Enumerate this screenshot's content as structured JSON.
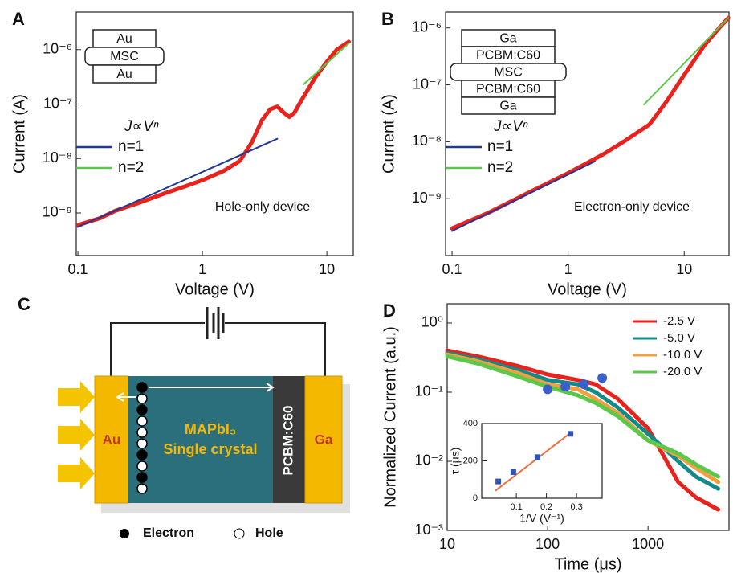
{
  "chart_data": [
    {
      "type": "line",
      "panel_label": "A",
      "xlabel": "Voltage (V)",
      "ylabel": "Current (A)",
      "log_x": true,
      "log_y": true,
      "xlim": [
        0.097,
        16.3
      ],
      "ylim": [
        1.65e-10,
        4.9e-06
      ],
      "xticks": [
        0.1,
        1,
        10
      ],
      "yticks": [
        {
          "value": 1e-09,
          "label": "10⁻⁹"
        },
        {
          "value": 1e-08,
          "label": "10⁻⁸"
        },
        {
          "value": 1e-07,
          "label": "10⁻⁷"
        },
        {
          "value": 1e-06,
          "label": "10⁻⁶"
        }
      ],
      "legend_title": "J∝Vⁿ",
      "legend": "left",
      "annotation": "Hole-only device",
      "stack": [
        "Au",
        "MSC",
        "Au"
      ],
      "series": [
        {
          "color": "#e8221c",
          "x": [
            0.1,
            0.15,
            0.2,
            0.25,
            0.3,
            0.5,
            0.7,
            1,
            1.5,
            2,
            2.5,
            3,
            3.5,
            4,
            4.5,
            5,
            5.5,
            6,
            7,
            8,
            10,
            12,
            15
          ],
          "values": [
            6e-10,
            8e-10,
            1.1e-09,
            1.3e-09,
            1.5e-09,
            2.3e-09,
            3e-09,
            4e-09,
            6e-09,
            9e-09,
            2e-08,
            5e-08,
            8e-08,
            9e-08,
            7e-08,
            5.8e-08,
            7e-08,
            1e-07,
            1.8e-07,
            3e-07,
            6e-07,
            1e-06,
            1.4e-06
          ]
        },
        {
          "name": "n=1",
          "color": "#1f3a93",
          "x": [
            0.1,
            4
          ],
          "values": [
            5.5e-10,
            2.3e-08
          ]
        },
        {
          "name": "n=2",
          "color": "#5cc84a",
          "x": [
            6.5,
            15
          ],
          "values": [
            2.3e-07,
            1.3e-06
          ]
        }
      ]
    },
    {
      "type": "line",
      "panel_label": "B",
      "xlabel": "Voltage (V)",
      "ylabel": "Current (A)",
      "log_x": true,
      "log_y": true,
      "xlim": [
        0.088,
        24.3
      ],
      "ylim": [
        1e-10,
        1.9e-06
      ],
      "xticks": [
        0.1,
        1,
        10
      ],
      "yticks": [
        {
          "value": 1e-09,
          "label": "10⁻⁹"
        },
        {
          "value": 1e-08,
          "label": "10⁻⁸"
        },
        {
          "value": 1e-07,
          "label": "10⁻⁷"
        },
        {
          "value": 1e-06,
          "label": "10⁻⁶"
        }
      ],
      "legend_title": "J∝Vⁿ",
      "legend": "left",
      "annotation": "Electron-only device",
      "stack": [
        "Ga",
        "PCBM:C60",
        "MSC",
        "PCBM:C60",
        "Ga"
      ],
      "series": [
        {
          "color": "#e8221c",
          "x": [
            0.1,
            0.2,
            0.5,
            1,
            2,
            3,
            5,
            7,
            10,
            15,
            20,
            24
          ],
          "values": [
            3e-10,
            5.5e-10,
            1.4e-09,
            2.8e-09,
            6e-09,
            1e-08,
            2e-08,
            5e-08,
            1.5e-07,
            5e-07,
            1e-06,
            1.5e-06
          ]
        },
        {
          "name": "n=1",
          "color": "#1f3a93",
          "x": [
            0.1,
            1.7
          ],
          "values": [
            2.7e-10,
            4.5e-09
          ]
        },
        {
          "name": "n=2",
          "color": "#5cc84a",
          "x": [
            4.5,
            24
          ],
          "values": [
            4.5e-08,
            1.5e-06
          ]
        }
      ]
    },
    {
      "type": "line",
      "panel_label": "D",
      "xlabel": "Time (μs)",
      "ylabel": "Normalized Current (a.u.)",
      "log_x": true,
      "log_y": true,
      "xlim": [
        10,
        6400
      ],
      "ylim": [
        0.001,
        1.9
      ],
      "xticks": [
        10,
        100,
        1000
      ],
      "yticks": [
        {
          "value": 0.001,
          "label": "10⁻³"
        },
        {
          "value": 0.01,
          "label": "10⁻²"
        },
        {
          "value": 0.1,
          "label": "10⁻¹"
        },
        {
          "value": 1,
          "label": "10⁰"
        }
      ],
      "legend": "upper right",
      "series": [
        {
          "name": "-2.5 V",
          "color": "#e8221c",
          "x": [
            10,
            20,
            50,
            100,
            200,
            300,
            500,
            1000,
            2000,
            3000,
            5000
          ],
          "values": [
            0.4,
            0.33,
            0.24,
            0.18,
            0.15,
            0.13,
            0.08,
            0.03,
            0.005,
            0.003,
            0.002
          ]
        },
        {
          "name": "-5.0 V",
          "color": "#138a8a",
          "x": [
            10,
            20,
            50,
            100,
            200,
            300,
            500,
            1000,
            2000,
            3000,
            5000
          ],
          "values": [
            0.37,
            0.3,
            0.21,
            0.15,
            0.13,
            0.1,
            0.06,
            0.025,
            0.01,
            0.006,
            0.004
          ]
        },
        {
          "name": "-10.0 V",
          "color": "#f0a040",
          "x": [
            10,
            20,
            50,
            100,
            200,
            300,
            500,
            1000,
            2000,
            3000,
            5000
          ],
          "values": [
            0.35,
            0.28,
            0.19,
            0.13,
            0.11,
            0.08,
            0.05,
            0.02,
            0.012,
            0.008,
            0.005
          ]
        },
        {
          "name": "-20.0 V",
          "color": "#5cc84a",
          "x": [
            10,
            20,
            50,
            100,
            200,
            300,
            500,
            1000,
            2000,
            3000,
            5000
          ],
          "values": [
            0.33,
            0.26,
            0.17,
            0.12,
            0.09,
            0.07,
            0.045,
            0.02,
            0.013,
            0.009,
            0.006
          ]
        },
        {
          "color": "#3a5fcd",
          "markers": true,
          "x": [
            100,
            150,
            230,
            350
          ],
          "values": [
            0.11,
            0.12,
            0.13,
            0.16
          ]
        }
      ],
      "inset": {
        "type": "scatter",
        "xlabel": "1/V (V⁻¹)",
        "ylabel": "τ (μs)",
        "xlim": [
          -0.015,
          0.385
        ],
        "ylim": [
          0,
          400
        ],
        "xticks": [
          0.1,
          0.2,
          0.3
        ],
        "yticks": [
          0,
          200,
          400
        ],
        "color": "#2d55b5",
        "x": [
          0.04,
          0.09,
          0.17,
          0.28
        ],
        "values": [
          90,
          140,
          220,
          345
        ],
        "fit": {
          "color": "#f06a3a",
          "x": [
            0.03,
            0.28
          ],
          "values": [
            40,
            350
          ]
        }
      }
    }
  ],
  "diagram": {
    "panel_label": "C",
    "left_electrode": "Au",
    "crystal": [
      "MAPbI₃",
      "Single crystal"
    ],
    "layer": "PCBM:C60",
    "right_electrode": "Ga",
    "legend": [
      "Electron",
      "Hole"
    ]
  }
}
